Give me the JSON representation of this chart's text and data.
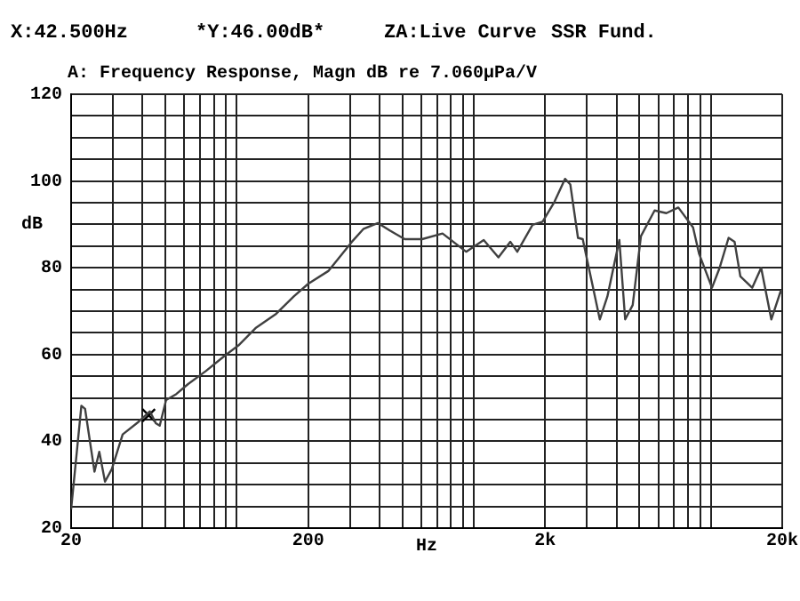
{
  "chart_data": {
    "type": "line",
    "title": "A: Frequency Response, Magn dB re 7.060µPa/V",
    "xlabel": "Hz",
    "ylabel": "dB",
    "annotations": [
      "X:42.500Hz",
      "*Y:46.00dB*",
      "ZA:Live Curve",
      "SSR Fund."
    ],
    "log": "x",
    "grid": true,
    "legend": false,
    "marker": "none",
    "line_style": "solid",
    "xlim": [
      20,
      20000
    ],
    "ylim": [
      20,
      120
    ],
    "xticks": [
      20,
      {
        "value": 30,
        "label": null
      },
      {
        "value": 40,
        "label": null
      },
      {
        "value": 50,
        "label": null
      },
      {
        "value": 60,
        "label": null
      },
      {
        "value": 70,
        "label": null
      },
      {
        "value": 80,
        "label": null
      },
      {
        "value": 90,
        "label": null
      },
      {
        "value": 100,
        "label": null
      },
      200,
      {
        "value": 300,
        "label": null
      },
      {
        "value": 400,
        "label": null
      },
      {
        "value": 500,
        "label": null
      },
      {
        "value": 600,
        "label": null
      },
      {
        "value": 700,
        "label": null
      },
      {
        "value": 800,
        "label": null
      },
      {
        "value": 900,
        "label": null
      },
      {
        "value": 1000,
        "label": null
      },
      {
        "value": 2000,
        "label": "2k"
      },
      {
        "value": 3000,
        "label": null
      },
      {
        "value": 4000,
        "label": null
      },
      {
        "value": 5000,
        "label": null
      },
      {
        "value": 6000,
        "label": null
      },
      {
        "value": 7000,
        "label": null
      },
      {
        "value": 8000,
        "label": null
      },
      {
        "value": 9000,
        "label": null
      },
      {
        "value": 10000,
        "label": null
      },
      {
        "value": 20000,
        "label": "20k"
      }
    ],
    "yticks": [
      20,
      {
        "value": 25,
        "label": null
      },
      {
        "value": 30,
        "label": null
      },
      {
        "value": 35,
        "label": null
      },
      40,
      {
        "value": 45,
        "label": null
      },
      {
        "value": 50,
        "label": null
      },
      {
        "value": 55,
        "label": null
      },
      60,
      {
        "value": 65,
        "label": null
      },
      {
        "value": 70,
        "label": null
      },
      {
        "value": 75,
        "label": null
      },
      80,
      {
        "value": 85,
        "label": null
      },
      {
        "value": 90,
        "label": null
      },
      {
        "value": 95,
        "label": null
      },
      100,
      {
        "value": 105,
        "label": null
      },
      {
        "value": 110,
        "label": null
      },
      {
        "value": 115,
        "label": null
      },
      120
    ],
    "series": [
      {
        "color": "#404040",
        "x": [
          20,
          22.1,
          22.9,
          25.1,
          26.3,
          27.8,
          29.7,
          33,
          38.5,
          43,
          45.5,
          47.3,
          50.3,
          55.6,
          62.3,
          74,
          87.9,
          101.6,
          120,
          146.6,
          174,
          200,
          244,
          306,
          343,
          394,
          442,
          511,
          605,
          738,
          928,
          1101,
          1270,
          1425,
          1525,
          1769,
          1950,
          2188,
          2425,
          2553,
          2750,
          2880,
          3400,
          3660,
          4110,
          4350,
          4680,
          5070,
          5790,
          6490,
          7290,
          8410,
          8910,
          10110,
          10890,
          11880,
          12590,
          13320,
          14940,
          16300,
          17990,
          19720,
          20000
        ],
        "values": [
          24.3,
          48.2,
          47.5,
          33,
          37.6,
          30.7,
          33.6,
          41.6,
          44.5,
          46.9,
          44.2,
          43.6,
          49.5,
          50.9,
          53.2,
          56.2,
          59.5,
          62.1,
          66.1,
          69.4,
          73.4,
          76.3,
          79.3,
          86,
          89,
          90.3,
          88.6,
          86.6,
          86.6,
          87.9,
          83.7,
          86.4,
          82.4,
          86,
          83.7,
          89.9,
          90.6,
          95.2,
          100.5,
          99.2,
          86.9,
          86.6,
          68.1,
          73.4,
          86.4,
          68.1,
          71.4,
          87.3,
          93.2,
          92.6,
          93.9,
          89.3,
          83.3,
          75.4,
          80,
          86.9,
          86,
          78,
          75.4,
          80,
          68.1,
          74.7,
          74
        ]
      },
      {
        "type": "scatter",
        "marker": "cross",
        "color": "#000000",
        "x": [
          42.5
        ],
        "values": [
          46
        ]
      }
    ]
  }
}
